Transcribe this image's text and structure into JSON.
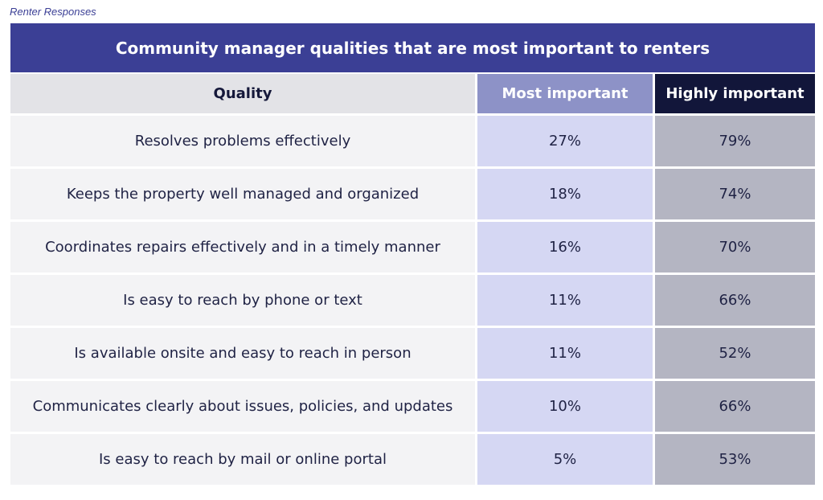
{
  "caption": "Renter Responses",
  "title": "Community manager qualities that are most important to renters",
  "colors": {
    "title_bg": "#3b3f95",
    "header_quality_bg": "#e3e3e7",
    "header_most_bg": "#8d92c7",
    "header_high_bg": "#12163a",
    "quality_cell_bg": "#f3f3f5",
    "most_cell_bg": "#d5d7f3",
    "high_cell_bg": "#b4b5c2"
  },
  "chart_data": {
    "type": "table",
    "title": "Community manager qualities that are most important to renters",
    "columns": [
      "Quality",
      "Most important",
      "Highly important"
    ],
    "rows": [
      {
        "quality": "Resolves problems effectively",
        "most": "27%",
        "high": "79%"
      },
      {
        "quality": "Keeps the property well managed and organized",
        "most": "18%",
        "high": "74%"
      },
      {
        "quality": "Coordinates repairs effectively and in a timely manner",
        "most": "16%",
        "high": "70%"
      },
      {
        "quality": "Is easy to reach by phone or text",
        "most": "11%",
        "high": "66%"
      },
      {
        "quality": "Is available onsite and easy to reach in person",
        "most": "11%",
        "high": "52%"
      },
      {
        "quality": "Communicates clearly about issues, policies, and updates",
        "most": "10%",
        "high": "66%"
      },
      {
        "quality": "Is easy to reach by mail or online portal",
        "most": "5%",
        "high": "53%"
      }
    ]
  }
}
